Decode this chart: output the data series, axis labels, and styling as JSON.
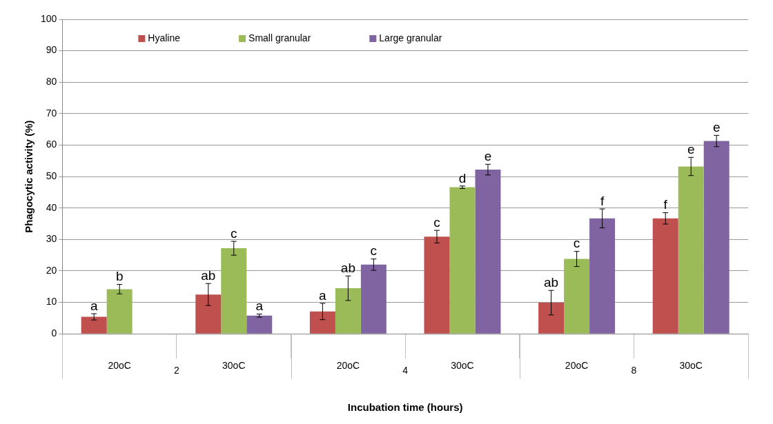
{
  "chart_data": {
    "type": "bar",
    "xlabel": "Incubation time (hours)",
    "ylabel": "Phagocytic activity (%)",
    "categories": [
      "20oC",
      "30oC",
      "20oC",
      "30oC",
      "20oC",
      "30oC"
    ],
    "series": [
      {
        "name": "Hyaline",
        "color": "#c0504d",
        "values": [
          5.4,
          12.5,
          7.1,
          30.9,
          9.9,
          36.7
        ],
        "errors": [
          1,
          3.5,
          2.6,
          2,
          3.9,
          1.8
        ],
        "value_labels": [
          "a",
          "ab",
          "a",
          "c",
          "ab",
          "f"
        ]
      },
      {
        "name": "Small granular",
        "color": "#9bbb59",
        "values": [
          14.2,
          27.2,
          14.5,
          46.6,
          23.8,
          53.2
        ],
        "errors": [
          1.5,
          2.2,
          3.9,
          0.4,
          2.4,
          2.9
        ],
        "value_labels": [
          "b",
          "c",
          "ab",
          "d",
          "c",
          "e"
        ]
      },
      {
        "name": "Large granular",
        "color": "#8064a2",
        "values": [
          null,
          5.8,
          22.0,
          52.2,
          36.7,
          61.3
        ],
        "errors": [
          null,
          0.5,
          1.8,
          1.7,
          3,
          1.8
        ],
        "value_labels": [
          null,
          "a",
          "c",
          "e",
          "f",
          "e"
        ]
      }
    ],
    "ylim": [
      0,
      100
    ],
    "yticks": [
      0,
      10,
      20,
      30,
      40,
      50,
      60,
      70,
      80,
      90,
      100
    ],
    "grid": "y",
    "legend": "top left",
    "annotations": [
      "2",
      "4",
      "8"
    ]
  }
}
